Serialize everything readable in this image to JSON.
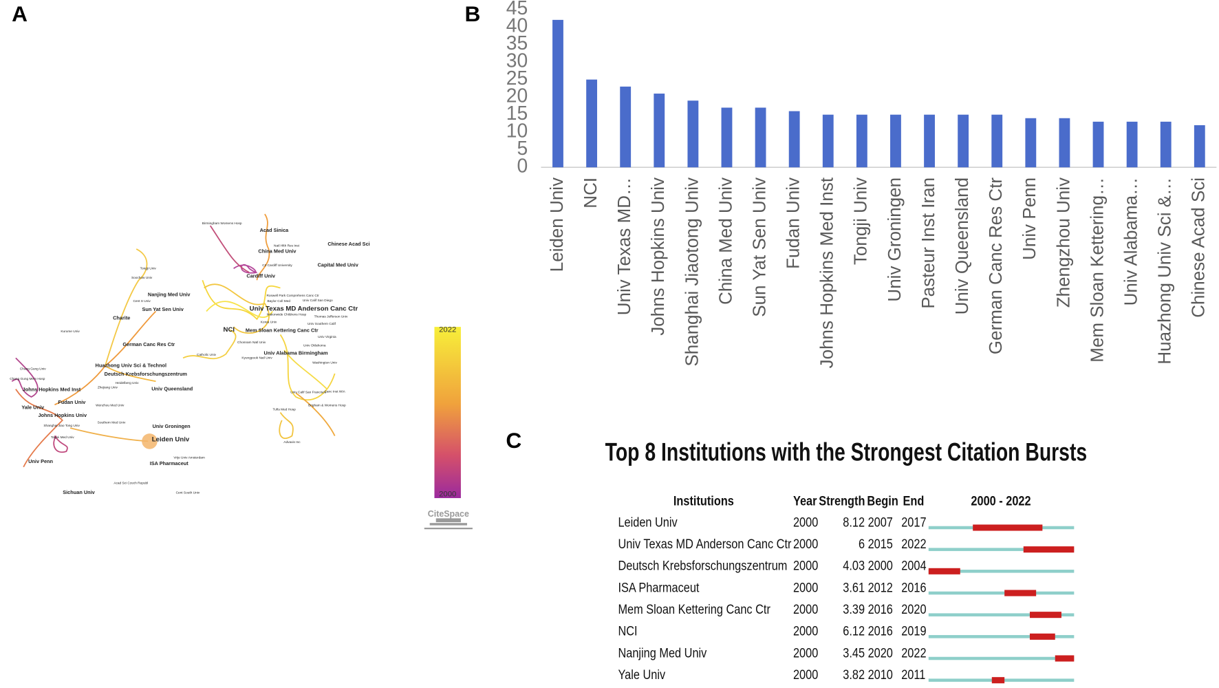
{
  "panels": [
    "A",
    "B",
    "C"
  ],
  "network": {
    "nodes": [
      "Acad Sinica",
      "Birmingham Womens Hosp",
      "Natl Hlth Res Inst",
      "Chinese Acad Sci",
      "China Med Univ",
      "C3 Cardiff University",
      "Capital Med Univ",
      "Cardiff Univ",
      "Tongji Univ",
      "Soochow Univ",
      "Nanjing Med Univ",
      "Roswell Park Comprehens Canc Ctr",
      "Baylor Coll Med",
      "Univ Calif San Diego",
      "Cent S Univ",
      "Sun Yat Sen Univ",
      "Univ Texas MD Anderson Canc Ctr",
      "Nationwide Childrens Hosp",
      "Thomas Jefferson Univ",
      "Charite",
      "Korea Univ",
      "Univ Southern Calif",
      "Kurume Univ",
      "NCI",
      "Mem Sloan Kettering Canc Ctr",
      "Univ Virginia",
      "German Canc Res Ctr",
      "Chonnam Natl Univ",
      "Univ Oklahoma",
      "Univ Alabama Birmingham",
      "Catholic Univ",
      "Kyungpook Natl Univ",
      "Washington Univ",
      "Huazhong Univ Sci & Technol",
      "Chang Gung Univ",
      "Deutsch Krebsforschungszentrum",
      "Chang Gung Mem Hosp",
      "Heidelberg Univ",
      "Zhejiang Univ",
      "Johns Hopkins Med Inst",
      "Univ Queensland",
      "Univ Calif San Francisco",
      "Canc Inst WIA",
      "Fudan Univ",
      "Yale Univ",
      "Wenzhou Med Univ",
      "Tufts Med Hosp",
      "Brigham & Womens Hosp",
      "Johns Hopkins Univ",
      "Southern Med Univ",
      "Shanghai Jiao Tong Univ",
      "Univ Groningen",
      "Taipei Med Univ",
      "Leiden Univ",
      "Advaxis Inc",
      "Vrije Univ Amsterdam",
      "Univ Penn",
      "ISA Pharmaceut",
      "Acad Sci Czech Republ",
      "Sichuan Univ",
      "Cent South Univ"
    ],
    "colorbar_range": [
      2000,
      2022
    ],
    "logo": "CiteSpace"
  },
  "chart_data": {
    "type": "bar",
    "categories": [
      "Leiden Univ",
      "NCI",
      "Univ Texas MD…",
      "Johns Hopkins Univ",
      "Shanghai Jiaotong Univ",
      "China Med Univ",
      "Sun Yat Sen Univ",
      "Fudan Univ",
      "Johns Hopkins Med Inst",
      "Tongji Univ",
      "Univ Groningen",
      "Pasteur Inst Iran",
      "Univ Queensland",
      "German Canc Res Ctr",
      "Univ Penn",
      "Zhengzhou Univ",
      "Mem Sloan Kettering…",
      "Univ Alabama…",
      "Huazhong Univ Sci &…",
      "Chinese Acad Sci"
    ],
    "values": [
      42,
      25,
      23,
      21,
      19,
      17,
      17,
      16,
      15,
      15,
      15,
      15,
      15,
      15,
      14,
      14,
      13,
      13,
      13,
      12
    ],
    "color": "#4a6ccb",
    "ylim": [
      0,
      45
    ],
    "yticks": [
      0,
      5,
      10,
      15,
      20,
      25,
      30,
      35,
      40,
      45
    ]
  },
  "bursts": {
    "title": "Top 8 Institutions with the Strongest Citation Bursts",
    "headers": [
      "Institutions",
      "Year",
      "Strength",
      "Begin",
      "End"
    ],
    "range_label": "2000 - 2022",
    "range": [
      2000,
      2022
    ],
    "rows": [
      {
        "institution": "Leiden Univ",
        "year": 2000,
        "strength": 8.12,
        "begin": 2007,
        "end": 2017
      },
      {
        "institution": "Univ Texas MD Anderson Canc Ctr",
        "year": 2000,
        "strength": 6,
        "begin": 2015,
        "end": 2022
      },
      {
        "institution": "Deutsch Krebsforschungszentrum",
        "year": 2000,
        "strength": 4.03,
        "begin": 2000,
        "end": 2004
      },
      {
        "institution": "ISA Pharmaceut",
        "year": 2000,
        "strength": 3.61,
        "begin": 2012,
        "end": 2016
      },
      {
        "institution": "Mem Sloan Kettering Canc Ctr",
        "year": 2000,
        "strength": 3.39,
        "begin": 2016,
        "end": 2020
      },
      {
        "institution": "NCI",
        "year": 2000,
        "strength": 6.12,
        "begin": 2016,
        "end": 2019
      },
      {
        "institution": "Nanjing Med Univ",
        "year": 2000,
        "strength": 3.45,
        "begin": 2020,
        "end": 2022
      },
      {
        "institution": "Yale Univ",
        "year": 2000,
        "strength": 3.82,
        "begin": 2010,
        "end": 2011
      }
    ]
  }
}
